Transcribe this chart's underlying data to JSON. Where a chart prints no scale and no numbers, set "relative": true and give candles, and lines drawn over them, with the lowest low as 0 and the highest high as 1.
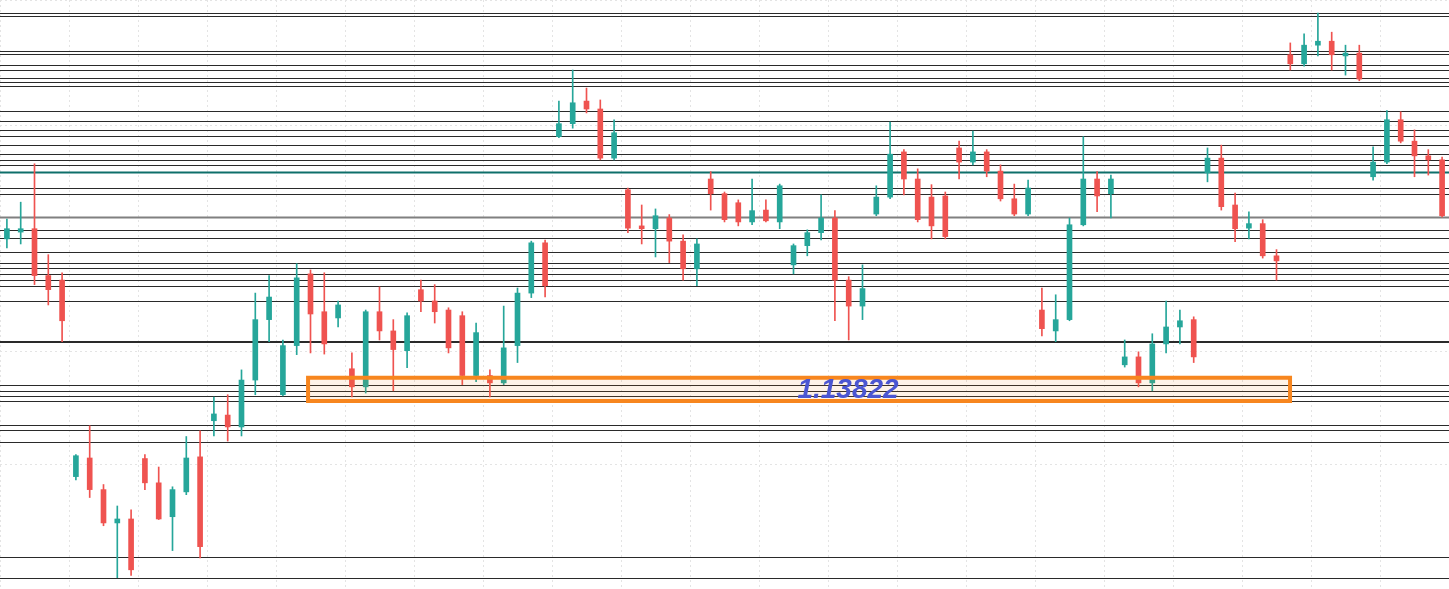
{
  "chart_data": {
    "type": "candlestick",
    "relative": true,
    "grid": true,
    "categories": [
      null,
      null,
      null,
      null,
      null,
      null,
      null,
      null,
      null,
      null,
      null,
      null,
      null,
      null,
      null,
      null,
      null,
      null,
      null,
      null,
      null,
      null,
      null,
      null,
      null,
      null,
      null,
      null,
      null,
      null,
      null,
      null,
      null,
      null,
      null,
      null,
      null,
      null,
      null,
      null,
      null,
      null,
      null,
      null,
      null,
      null,
      null,
      null,
      null,
      null,
      null,
      null,
      null,
      null,
      null,
      null,
      null,
      null,
      null,
      null,
      null,
      null,
      null,
      null,
      null,
      null,
      null,
      null,
      null,
      null,
      null,
      null,
      null,
      null,
      null,
      null,
      null,
      null,
      null,
      null,
      null,
      null,
      null,
      null,
      null,
      null,
      null,
      null,
      null,
      null,
      null,
      null,
      null,
      null,
      null,
      null,
      null,
      null,
      null,
      null,
      null,
      null,
      null,
      null,
      null
    ],
    "ohlc": [
      [
        0.6,
        0.635,
        0.584,
        0.618
      ],
      [
        0.612,
        0.665,
        0.591,
        0.618
      ],
      [
        0.618,
        0.733,
        0.519,
        0.535
      ],
      [
        0.535,
        0.572,
        0.483,
        0.51
      ],
      [
        0.527,
        0.54,
        0.418,
        0.455
      ],
      [
        0.179,
        0.218,
        0.173,
        0.216
      ],
      [
        0.212,
        0.269,
        0.142,
        0.156
      ],
      [
        0.156,
        0.165,
        0.092,
        0.097
      ],
      [
        0.097,
        0.127,
        0.0,
        0.104
      ],
      [
        0.104,
        0.12,
        0.004,
        0.014
      ],
      [
        0.211,
        0.218,
        0.156,
        0.168
      ],
      [
        0.168,
        0.196,
        0.103,
        0.104
      ],
      [
        0.108,
        0.161,
        0.048,
        0.156
      ],
      [
        0.152,
        0.25,
        0.147,
        0.212
      ],
      [
        0.214,
        0.26,
        0.035,
        0.055
      ],
      [
        0.278,
        0.32,
        0.251,
        0.29
      ],
      [
        0.288,
        0.324,
        0.242,
        0.267
      ],
      [
        0.267,
        0.368,
        0.251,
        0.35
      ],
      [
        0.35,
        0.504,
        0.324,
        0.457
      ],
      [
        0.457,
        0.535,
        0.418,
        0.497
      ],
      [
        0.324,
        0.421,
        0.322,
        0.411
      ],
      [
        0.411,
        0.556,
        0.395,
        0.531
      ],
      [
        0.538,
        0.545,
        0.398,
        0.467
      ],
      [
        0.471,
        0.54,
        0.396,
        0.414
      ],
      [
        0.46,
        0.49,
        0.444,
        0.483
      ],
      [
        0.37,
        0.398,
        0.32,
        0.338
      ],
      [
        0.338,
        0.474,
        0.327,
        0.471
      ],
      [
        0.471,
        0.515,
        0.421,
        0.437
      ],
      [
        0.437,
        0.457,
        0.331,
        0.404
      ],
      [
        0.402,
        0.469,
        0.372,
        0.464
      ],
      [
        0.51,
        0.527,
        0.471,
        0.49
      ],
      [
        0.49,
        0.519,
        0.451,
        0.471
      ],
      [
        0.474,
        0.478,
        0.398,
        0.407
      ],
      [
        0.464,
        0.471,
        0.342,
        0.358
      ],
      [
        0.358,
        0.451,
        0.347,
        0.434
      ],
      [
        0.358,
        0.368,
        0.32,
        0.345
      ],
      [
        0.345,
        0.481,
        0.342,
        0.407
      ],
      [
        0.411,
        0.513,
        0.381,
        0.504
      ],
      [
        0.504,
        0.596,
        0.496,
        0.593
      ],
      [
        0.593,
        0.598,
        0.497,
        0.517
      ],
      [
        0.781,
        0.844,
        0.779,
        0.804
      ],
      [
        0.804,
        0.899,
        0.796,
        0.841
      ],
      [
        0.844,
        0.867,
        0.823,
        0.83
      ],
      [
        0.83,
        0.846,
        0.74,
        0.743
      ],
      [
        0.743,
        0.811,
        0.74,
        0.788
      ],
      [
        0.687,
        0.69,
        0.611,
        0.619
      ],
      [
        0.623,
        0.66,
        0.591,
        0.618
      ],
      [
        0.618,
        0.653,
        0.568,
        0.641
      ],
      [
        0.637,
        0.643,
        0.558,
        0.596
      ],
      [
        0.596,
        0.607,
        0.527,
        0.547
      ],
      [
        0.547,
        0.6,
        0.517,
        0.591
      ],
      [
        0.706,
        0.719,
        0.651,
        0.68
      ],
      [
        0.68,
        0.683,
        0.63,
        0.634
      ],
      [
        0.664,
        0.669,
        0.623,
        0.63
      ],
      [
        0.63,
        0.706,
        0.625,
        0.65
      ],
      [
        0.651,
        0.669,
        0.63,
        0.632
      ],
      [
        0.63,
        0.697,
        0.618,
        0.694
      ],
      [
        0.554,
        0.591,
        0.538,
        0.588
      ],
      [
        0.588,
        0.616,
        0.57,
        0.611
      ],
      [
        0.611,
        0.678,
        0.598,
        0.637
      ],
      [
        0.637,
        0.65,
        0.455,
        0.527
      ],
      [
        0.527,
        0.533,
        0.421,
        0.481
      ],
      [
        0.481,
        0.554,
        0.457,
        0.512
      ],
      [
        0.644,
        0.694,
        0.641,
        0.674
      ],
      [
        0.674,
        0.807,
        0.671,
        0.75
      ],
      [
        0.754,
        0.758,
        0.678,
        0.706
      ],
      [
        0.706,
        0.724,
        0.63,
        0.634
      ],
      [
        0.674,
        0.696,
        0.6,
        0.623
      ],
      [
        0.676,
        0.683,
        0.6,
        0.604
      ],
      [
        0.761,
        0.773,
        0.706,
        0.736
      ],
      [
        0.736,
        0.791,
        0.731,
        0.754
      ],
      [
        0.754,
        0.758,
        0.71,
        0.72
      ],
      [
        0.72,
        0.731,
        0.667,
        0.671
      ],
      [
        0.671,
        0.697,
        0.641,
        0.644
      ],
      [
        0.644,
        0.704,
        0.641,
        0.69
      ],
      [
        0.474,
        0.513,
        0.428,
        0.441
      ],
      [
        0.437,
        0.501,
        0.418,
        0.457
      ],
      [
        0.457,
        0.637,
        0.455,
        0.625
      ],
      [
        0.625,
        0.781,
        0.623,
        0.706
      ],
      [
        0.706,
        0.719,
        0.648,
        0.676
      ],
      [
        0.68,
        0.713,
        0.637,
        0.706
      ],
      [
        0.377,
        0.421,
        0.373,
        0.391
      ],
      [
        0.391,
        0.4,
        0.338,
        0.345
      ],
      [
        0.345,
        0.432,
        0.331,
        0.414
      ],
      [
        0.414,
        0.49,
        0.398,
        0.444
      ],
      [
        0.444,
        0.474,
        0.414,
        0.455
      ],
      [
        0.457,
        0.462,
        0.381,
        0.391
      ],
      [
        0.717,
        0.761,
        0.701,
        0.743
      ],
      [
        0.743,
        0.766,
        0.651,
        0.657
      ],
      [
        0.66,
        0.681,
        0.595,
        0.618
      ],
      [
        0.619,
        0.648,
        0.6,
        0.627
      ],
      [
        0.627,
        0.634,
        0.566,
        0.57
      ],
      [
        0.57,
        0.581,
        0.527,
        0.561
      ],
      [
        0.926,
        0.947,
        0.899,
        0.91
      ],
      [
        0.91,
        0.963,
        0.906,
        0.943
      ],
      [
        0.943,
        1.0,
        0.924,
        0.95
      ],
      [
        0.95,
        0.966,
        0.899,
        0.926
      ],
      [
        0.924,
        0.943,
        0.89,
        0.929
      ],
      [
        0.929,
        0.943,
        0.88,
        0.883
      ],
      [
        0.71,
        0.763,
        0.704,
        0.736
      ],
      [
        0.736,
        0.827,
        0.733,
        0.811
      ],
      [
        0.811,
        0.825,
        0.77,
        0.773
      ],
      [
        0.773,
        0.793,
        0.71,
        0.747
      ],
      [
        0.747,
        0.758,
        0.713,
        0.74
      ],
      [
        0.74,
        0.745,
        0.639,
        0.641
      ]
    ],
    "ref_lines": [
      {
        "axis": "y",
        "value": 1.0
      },
      {
        "axis": "y",
        "value": 0.995
      },
      {
        "axis": "y",
        "value": 0.933
      },
      {
        "axis": "y",
        "value": 0.927
      },
      {
        "axis": "y",
        "value": 0.908
      },
      {
        "axis": "y",
        "value": 0.899
      },
      {
        "axis": "y",
        "value": 0.885
      },
      {
        "axis": "y",
        "value": 0.878
      },
      {
        "axis": "y",
        "value": 0.871
      },
      {
        "axis": "y",
        "value": 0.827
      },
      {
        "axis": "y",
        "value": 0.809
      },
      {
        "axis": "y",
        "value": 0.793
      },
      {
        "axis": "y",
        "value": 0.782
      },
      {
        "axis": "y",
        "value": 0.766
      },
      {
        "axis": "y",
        "value": 0.75
      },
      {
        "axis": "y",
        "value": 0.74
      },
      {
        "axis": "y",
        "value": 0.731
      },
      {
        "axis": "y",
        "value": 0.719,
        "color": "#0e6f6a"
      },
      {
        "axis": "y",
        "value": 0.69
      },
      {
        "axis": "y",
        "value": 0.679
      },
      {
        "axis": "y",
        "value": 0.639,
        "color": "#808080"
      },
      {
        "axis": "y",
        "value": 0.616
      },
      {
        "axis": "y",
        "value": 0.602
      },
      {
        "axis": "y",
        "value": 0.577
      },
      {
        "axis": "y",
        "value": 0.558
      },
      {
        "axis": "y",
        "value": 0.549
      },
      {
        "axis": "y",
        "value": 0.538
      },
      {
        "axis": "y",
        "value": 0.527
      },
      {
        "axis": "y",
        "value": 0.517
      },
      {
        "axis": "y",
        "value": 0.49
      },
      {
        "axis": "y",
        "value": 0.419
      },
      {
        "axis": "y",
        "value": 0.418
      },
      {
        "axis": "y",
        "value": 0.342
      },
      {
        "axis": "y",
        "value": 0.331
      },
      {
        "axis": "y",
        "value": 0.322
      },
      {
        "axis": "y",
        "value": 0.313
      },
      {
        "axis": "y",
        "value": 0.271
      },
      {
        "axis": "y",
        "value": 0.262
      },
      {
        "axis": "y",
        "value": 0.241
      },
      {
        "axis": "y",
        "value": 0.037
      },
      {
        "axis": "y",
        "value": 0.0
      }
    ],
    "bands": [
      {
        "axis": "y",
        "from": 0.313,
        "to": 0.354,
        "label": "1.13822",
        "color": "#f7861f"
      }
    ]
  }
}
